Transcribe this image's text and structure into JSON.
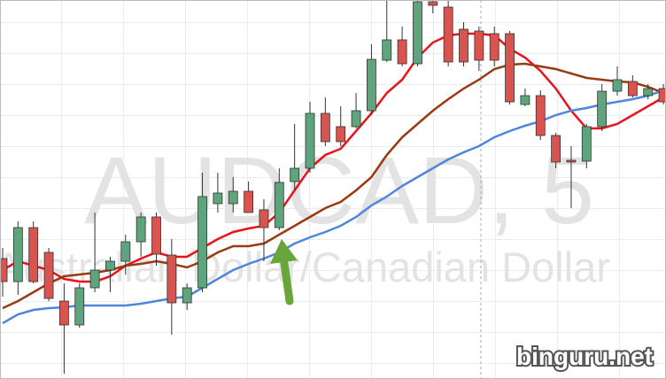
{
  "chart_data": {
    "type": "candlestick",
    "title": "AUDCAD, 5",
    "subtitle": "Australian Dollar/Canadian Dollar",
    "watermark": "binguru.net",
    "categories": [
      null,
      null,
      null,
      null,
      null,
      null,
      null,
      null,
      null,
      null,
      null,
      null,
      null,
      null,
      null,
      null,
      null,
      null,
      null,
      null,
      null,
      null,
      null,
      null,
      null,
      null,
      null,
      null,
      null,
      null,
      null,
      null,
      null,
      null,
      null,
      null,
      null,
      null,
      null,
      null,
      null,
      null,
      null,
      null
    ],
    "open": [
      136,
      110,
      171,
      143,
      88,
      61,
      103,
      123,
      133,
      155,
      183,
      140,
      86,
      103,
      198,
      198,
      212,
      191,
      171,
      223,
      238,
      300,
      285,
      285,
      303,
      360,
      383,
      356,
      426,
      420,
      395,
      393,
      390,
      390,
      310,
      320,
      275,
      247,
      246,
      285,
      325,
      336,
      320,
      328
    ],
    "high": [
      148,
      178,
      178,
      148,
      108,
      108,
      188,
      138,
      163,
      188,
      188,
      158,
      108,
      233,
      233,
      228,
      223,
      203,
      238,
      288,
      313,
      318,
      308,
      323,
      378,
      428,
      398,
      428,
      428,
      428,
      403,
      398,
      398,
      393,
      328,
      326,
      278,
      263,
      288,
      333,
      353,
      343,
      333,
      333
    ],
    "low": [
      93,
      95,
      108,
      88,
      6,
      58,
      98,
      98,
      118,
      138,
      128,
      50,
      78,
      98,
      188,
      188,
      188,
      133,
      168,
      213,
      233,
      263,
      263,
      283,
      298,
      358,
      353,
      353,
      413,
      353,
      353,
      348,
      353,
      310,
      308,
      270,
      238,
      193,
      238,
      280,
      320,
      318,
      316,
      310
    ],
    "close": [
      110,
      171,
      110,
      91,
      61,
      103,
      123,
      133,
      155,
      183,
      141,
      86,
      103,
      206,
      210,
      212,
      188,
      171,
      222,
      238,
      300,
      268,
      268,
      303,
      361,
      383,
      356,
      426,
      422,
      358,
      358,
      360,
      360,
      313,
      320,
      275,
      245,
      245,
      285,
      325,
      338,
      320,
      328,
      313
    ],
    "up_color": "#5ea57d",
    "down_color": "#d9534f",
    "series": [
      {
        "color": "#e8141b",
        "values": [
          123,
          133,
          128,
          123,
          113,
          110,
          110,
          116,
          128,
          136,
          143,
          138,
          138,
          148,
          158,
          166,
          170,
          173,
          188,
          213,
          238,
          253,
          260,
          280,
          300,
          323,
          338,
          363,
          380,
          388,
          390,
          390,
          388,
          373,
          363,
          348,
          328,
          303,
          283,
          283,
          288,
          298,
          308,
          318
        ]
      },
      {
        "color": "#9b3a12",
        "values": [
          80,
          88,
          98,
          108,
          116,
          118,
          120,
          123,
          128,
          130,
          133,
          130,
          126,
          133,
          143,
          150,
          150,
          153,
          163,
          173,
          183,
          193,
          200,
          213,
          228,
          253,
          273,
          288,
          303,
          316,
          328,
          338,
          350,
          355,
          356,
          353,
          350,
          345,
          340,
          338,
          336,
          335,
          330,
          323
        ]
      },
      {
        "color": "#4f86db",
        "values": [
          63,
          73,
          78,
          80,
          81,
          83,
          83,
          83,
          83,
          85,
          88,
          91,
          93,
          103,
          113,
          123,
          130,
          136,
          143,
          153,
          160,
          166,
          173,
          183,
          196,
          206,
          218,
          228,
          238,
          248,
          256,
          263,
          273,
          280,
          286,
          291,
          298,
          303,
          306,
          310,
          313,
          316,
          320,
          326
        ]
      }
    ],
    "ylim": [
      0,
      428
    ],
    "grid": true
  }
}
